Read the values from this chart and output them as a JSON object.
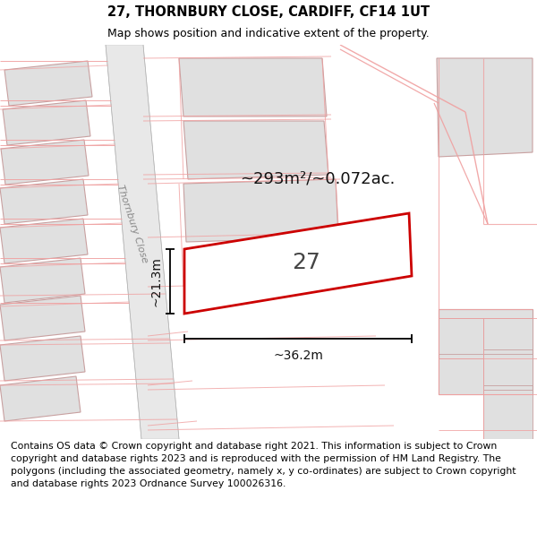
{
  "title": "27, THORNBURY CLOSE, CARDIFF, CF14 1UT",
  "subtitle": "Map shows position and indicative extent of the property.",
  "footer": "Contains OS data © Crown copyright and database right 2021. This information is subject to Crown copyright and database rights 2023 and is reproduced with the permission of HM Land Registry. The polygons (including the associated geometry, namely x, y co-ordinates) are subject to Crown copyright and database rights 2023 Ordnance Survey 100026316.",
  "title_fontsize": 10.5,
  "subtitle_fontsize": 9,
  "footer_fontsize": 7.8,
  "bg_color": "#ffffff",
  "map_bg": "#ffffff",
  "plot_outline_color": "#cc0000",
  "plot_fill_color": "#ffffff",
  "plot_number": "27",
  "area_label": "~293m²/~0.072ac.",
  "width_label": "~36.2m",
  "height_label": "~21.3m",
  "road_line_color": "#f0a0a0",
  "building_fill": "#e0e0e0",
  "building_stroke": "#c8a0a0",
  "road_fill": "#e8e8e8",
  "street_label": "Thornbury Close",
  "title_color": "#000000"
}
